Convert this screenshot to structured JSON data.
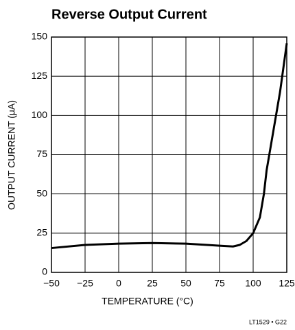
{
  "chart_data": {
    "type": "line",
    "title": "Reverse Output Current",
    "x_label": "TEMPERATURE (°C)",
    "y_label": "OUTPUT CURRENT (μA)",
    "note": "LT1529 • G22",
    "x": [
      -50,
      -25,
      0,
      25,
      50,
      75,
      85,
      90,
      95,
      100,
      105,
      108,
      110,
      115,
      120,
      125
    ],
    "series": [
      {
        "name": "Reverse output current",
        "color": "#000000",
        "values": [
          15.5,
          17.5,
          18.3,
          18.7,
          18.3,
          17,
          16.5,
          17.5,
          20,
          25,
          35,
          50,
          65,
          90,
          115,
          146
        ]
      }
    ],
    "xlim": [
      -50,
      125
    ],
    "xticks": [
      {
        "value": -50,
        "label": "−50"
      },
      {
        "value": -25,
        "label": "−25"
      },
      0,
      25,
      50,
      75,
      100,
      125
    ],
    "ylim": [
      0,
      150
    ],
    "yticks": [
      0,
      25,
      50,
      75,
      100,
      125,
      150
    ],
    "grid": true
  }
}
